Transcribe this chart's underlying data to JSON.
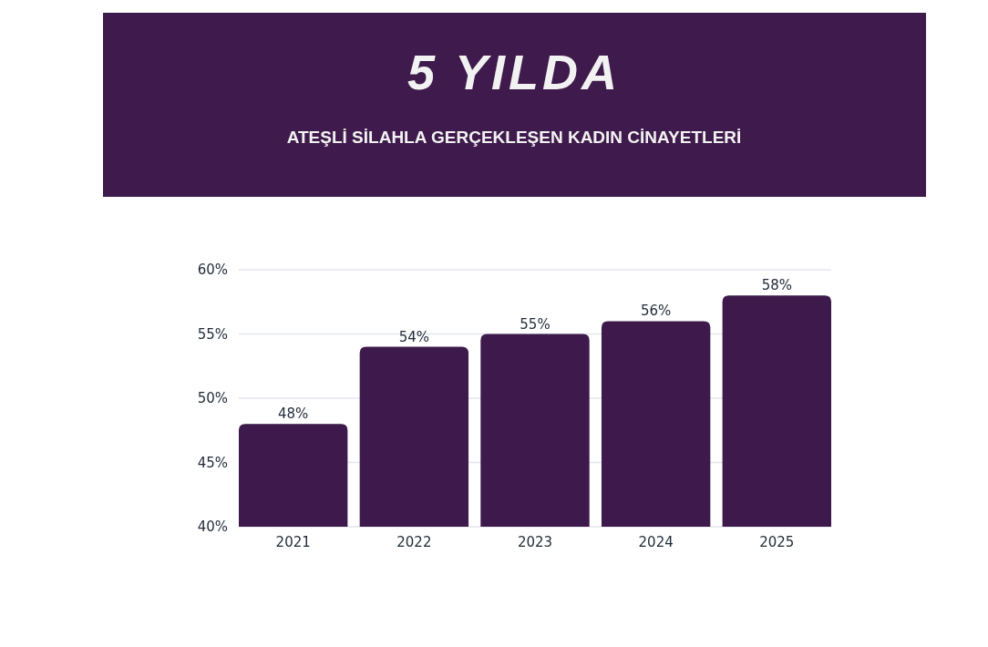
{
  "chart_data": {
    "type": "bar",
    "title": "5 YILDA",
    "subtitle": "ATEŞLİ SİLAHLA GERÇEKLEŞEN KADIN CİNAYETLERİ",
    "categories": [
      "2021",
      "2022",
      "2023",
      "2024",
      "2025"
    ],
    "values": [
      48,
      54,
      55,
      56,
      58
    ],
    "value_labels": [
      "48%",
      "54%",
      "55%",
      "56%",
      "58%"
    ],
    "color": "#3d1a4b",
    "ylim": [
      40,
      60
    ],
    "yticks": [
      {
        "value": 40,
        "label": "40%"
      },
      {
        "value": 45,
        "label": "45%"
      },
      {
        "value": 50,
        "label": "50%"
      },
      {
        "value": 55,
        "label": "55%"
      },
      {
        "value": 60,
        "label": "60%"
      }
    ],
    "grid": "y"
  }
}
